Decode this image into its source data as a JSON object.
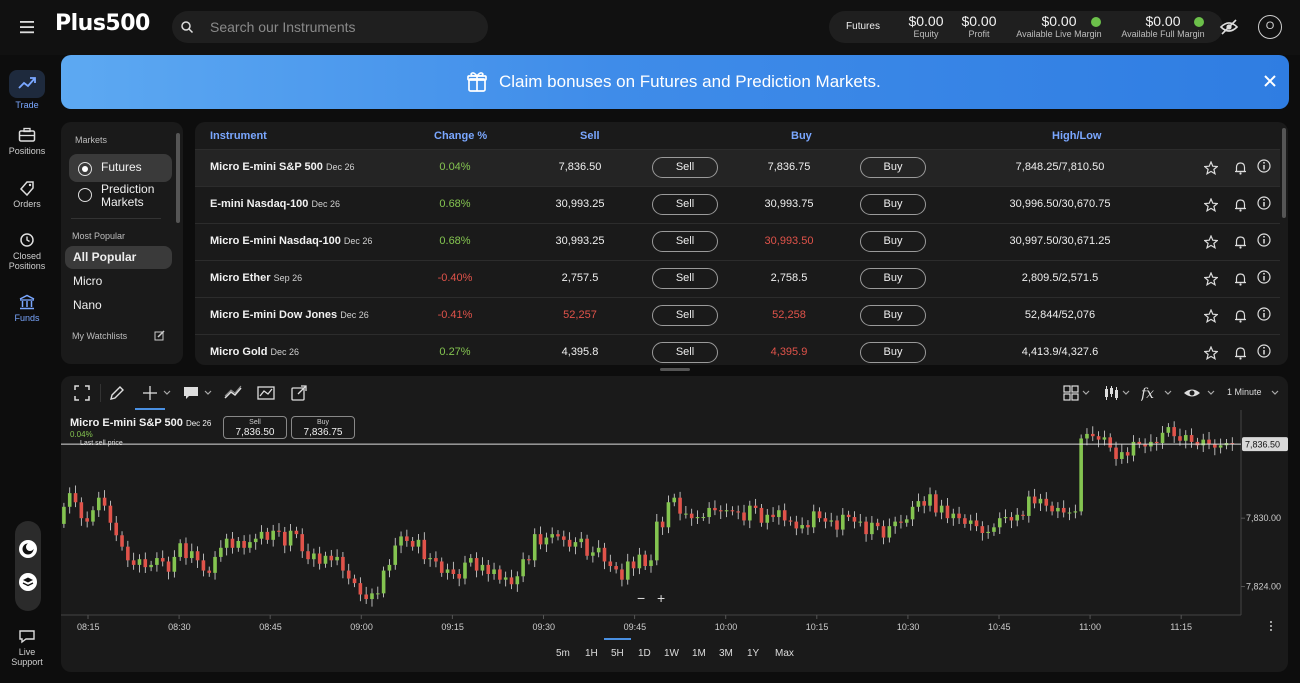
{
  "header": {
    "logo": "Plus500",
    "search_placeholder": "Search our Instruments",
    "futures_label": "Futures",
    "account": [
      {
        "value": "$0.00",
        "label": "Equity"
      },
      {
        "value": "$0.00",
        "label": "Profit"
      },
      {
        "value": "$0.00",
        "label": "Available Live Margin"
      },
      {
        "value": "$0.00",
        "label": "Available Full Margin"
      }
    ],
    "avatar": "O"
  },
  "nav": [
    {
      "label": "Trade",
      "icon": "trade-icon"
    },
    {
      "label": "Positions",
      "icon": "briefcase-icon"
    },
    {
      "label": "Orders",
      "icon": "tag-icon"
    },
    {
      "label": "Closed Positions",
      "icon": "history-icon"
    },
    {
      "label": "Funds",
      "icon": "bank-icon"
    },
    {
      "label": "Live Support",
      "icon": "chat-icon"
    }
  ],
  "banner": {
    "text": "Claim bonuses on Futures and Prediction Markets."
  },
  "markets": {
    "title": "Markets",
    "options": [
      "Futures",
      "Prediction Markets"
    ],
    "selected": "Futures",
    "most_popular_title": "Most Popular",
    "categories": [
      "All Popular",
      "Micro",
      "Nano"
    ],
    "watchlists_label": "My Watchlists"
  },
  "table": {
    "headers": {
      "instrument": "Instrument",
      "change": "Change %",
      "sell": "Sell",
      "buy": "Buy",
      "highlow": "High/Low"
    },
    "sell_btn": "Sell",
    "buy_btn": "Buy",
    "rows": [
      {
        "name": "Micro E-mini S&P 500",
        "exp": "Dec 26",
        "change": "0.04%",
        "sell": "7,836.50",
        "buy": "7,836.75",
        "highlow": "7,848.25/7,810.50"
      },
      {
        "name": "E-mini Nasdaq-100",
        "exp": "Dec 26",
        "change": "0.68%",
        "sell": "30,993.25",
        "buy": "30,993.75",
        "highlow": "30,996.50/30,670.75"
      },
      {
        "name": "Micro E-mini Nasdaq-100",
        "exp": "Dec 26",
        "change": "0.68%",
        "sell": "30,993.25",
        "buy": "30,993.50",
        "highlow": "30,997.50/30,671.25"
      },
      {
        "name": "Micro Ether",
        "exp": "Sep 26",
        "change": "-0.40%",
        "sell": "2,757.5",
        "buy": "2,758.5",
        "highlow": "2,809.5/2,571.5"
      },
      {
        "name": "Micro E-mini Dow Jones",
        "exp": "Dec 26",
        "change": "-0.41%",
        "sell": "52,257",
        "buy": "52,258",
        "highlow": "52,844/52,076"
      },
      {
        "name": "Micro Gold",
        "exp": "Dec 26",
        "change": "0.27%",
        "sell": "4,395.8",
        "buy": "4,395.9",
        "highlow": "4,413.9/4,327.6"
      }
    ]
  },
  "chart": {
    "interval": "1 Minute",
    "instrument": "Micro E-mini S&P 500",
    "exp": "Dec 26",
    "change": "0.04%",
    "last_label": "Last sell price",
    "sell_label": "Sell",
    "sell_value": "7,836.50",
    "buy_label": "Buy",
    "buy_value": "7,836.75",
    "timeframes": [
      "5m",
      "1H",
      "5H",
      "1D",
      "1W",
      "1M",
      "3M",
      "1Y",
      "Max"
    ],
    "selected_timeframe": "5H",
    "zoom_out": "−",
    "zoom_in": "+"
  },
  "chart_data": {
    "type": "candlestick",
    "title": "Micro E-mini S&P 500",
    "x_ticks": [
      "08:15",
      "08:30",
      "08:45",
      "09:00",
      "09:15",
      "09:30",
      "09:45",
      "10:00",
      "10:15",
      "10:30",
      "10:45",
      "11:00",
      "11:15"
    ],
    "y_ticks": [
      "7,830.00",
      "7,824.00"
    ],
    "current_price_label": "7,836.50",
    "current_price": 7836.5,
    "ylim": [
      7821.5,
      7839.5
    ],
    "up_color": "#84c450",
    "down_color": "#e0534a",
    "path": [
      7829.5,
      7831.0,
      7832.2,
      7831.4,
      7830.0,
      7829.7,
      7830.7,
      7831.8,
      7831.1,
      7829.6,
      7828.5,
      7827.5,
      7826.3,
      7825.9,
      7826.4,
      7825.7,
      7825.9,
      7826.5,
      7826.2,
      7825.3,
      7826.6,
      7827.8,
      7826.5,
      7827.1,
      7826.3,
      7825.4,
      7825.2,
      7826.6,
      7827.4,
      7828.2,
      7827.4,
      7828.0,
      7827.4,
      7827.9,
      7828.2,
      7828.8,
      7828.1,
      7828.9,
      7828.8,
      7827.6,
      7828.9,
      7828.6,
      7827.1,
      7826.4,
      7826.9,
      7826.0,
      7826.7,
      7826.3,
      7826.6,
      7825.4,
      7824.7,
      7824.3,
      7823.3,
      7822.9,
      7823.4,
      7823.4,
      7825.4,
      7825.9,
      7827.6,
      7828.4,
      7828.0,
      7827.5,
      7828.1,
      7826.4,
      7826.5,
      7826.2,
      7825.2,
      7825.5,
      7825.1,
      7824.7,
      7826.1,
      7826.5,
      7825.4,
      7825.9,
      7825.1,
      7825.5,
      7824.6,
      7824.8,
      7824.2,
      7824.9,
      7826.4,
      7826.3,
      7828.6,
      7827.7,
      7828.3,
      7828.6,
      7828.4,
      7828.1,
      7827.5,
      7827.9,
      7828.2,
      7826.7,
      7827.0,
      7827.4,
      7826.2,
      7825.8,
      7825.5,
      7824.6,
      7826.2,
      7825.6,
      7826.8,
      7825.8,
      7826.3,
      7829.7,
      7829.2,
      7831.4,
      7831.8,
      7830.4,
      7830.4,
      7830.0,
      7830.1,
      7830.1,
      7830.9,
      7830.7,
      7830.6,
      7830.7,
      7830.6,
      7830.5,
      7829.8,
      7831.1,
      7830.9,
      7829.6,
      7830.3,
      7830.1,
      7830.7,
      7829.8,
      7829.7,
      7829.1,
      7829.4,
      7829.2,
      7830.6,
      7830.0,
      7829.7,
      7829.8,
      7829.0,
      7830.3,
      7830.1,
      7829.7,
      7829.7,
      7828.6,
      7829.6,
      7829.3,
      7828.3,
      7829.3,
      7829.7,
      7829.6,
      7829.9,
      7831.0,
      7831.5,
      7831.1,
      7832.1,
      7830.5,
      7831.1,
      7830.0,
      7830.4,
      7830.0,
      7829.5,
      7829.8,
      7829.3,
      7828.7,
      7828.8,
      7829.2,
      7830.0,
      7830.1,
      7829.8,
      7830.3,
      7830.2,
      7831.9,
      7831.3,
      7831.7,
      7831.1,
      7830.6,
      7830.9,
      7830.5,
      7830.5,
      7830.6,
      7837.0,
      7837.4,
      7837.2,
      7836.9,
      7837.1,
      7836.2,
      7835.2,
      7835.8,
      7835.5,
      7836.7,
      7836.5,
      7836.3,
      7836.7,
      7836.6,
      7837.5,
      7838.0,
      7837.2,
      7836.8,
      7837.3,
      7836.7,
      7836.4,
      7836.9,
      7836.5,
      7836.2,
      7836.4,
      7836.6,
      7836.5
    ]
  }
}
